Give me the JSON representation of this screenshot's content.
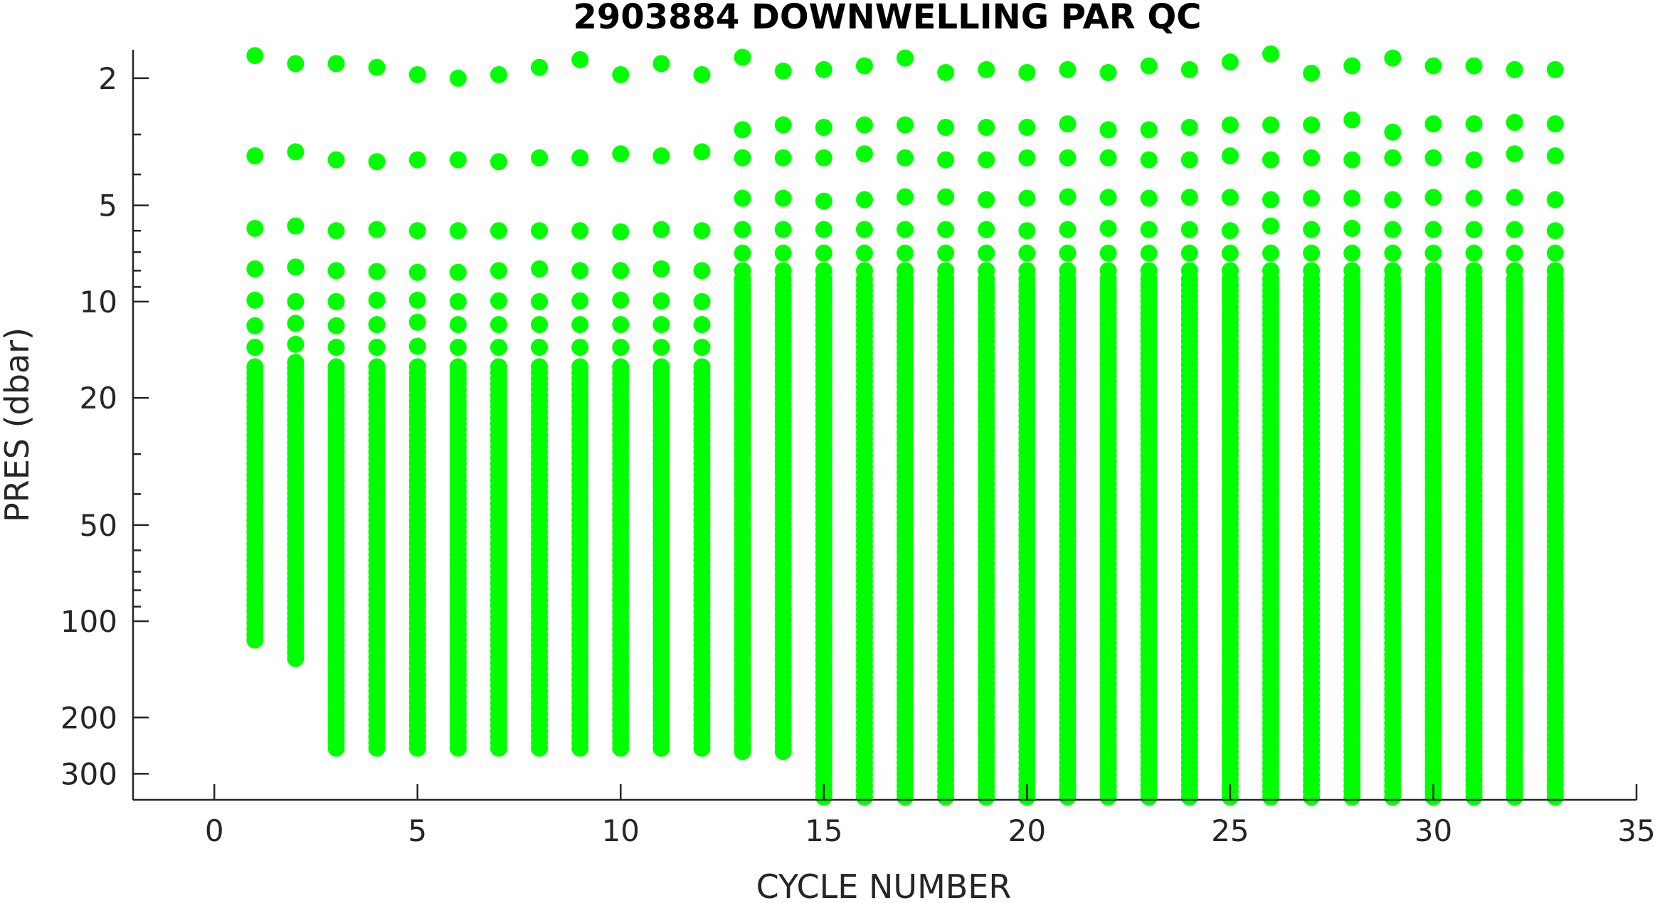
{
  "chart_data": {
    "type": "scatter",
    "title": "2903884  DOWNWELLING PAR QC",
    "xlabel": "CYCLE NUMBER",
    "ylabel": "PRES (dbar)",
    "xlim": [
      -2,
      35
    ],
    "ylim": [
      1.63,
      362
    ],
    "y_scale": "log",
    "y_reversed": true,
    "grid": false,
    "legend": "none",
    "x_ticks": [
      0,
      5,
      10,
      15,
      20,
      25,
      30,
      35
    ],
    "y_ticks": [
      2,
      5,
      10,
      20,
      50,
      100,
      200,
      300
    ],
    "marker_color": "#00ff00",
    "marker_size": "large filled circle",
    "profiles": [
      {
        "cycle": 1,
        "top_points": [
          1.7,
          3.5,
          5.9,
          7.9,
          9.9,
          11.9,
          13.9
        ],
        "dense_from": 16,
        "max_pres": 118
      },
      {
        "cycle": 2,
        "top_points": [
          1.8,
          3.4,
          5.8,
          7.8,
          10.0,
          11.7,
          13.6
        ],
        "dense_from": 15.5,
        "max_pres": 132
      },
      {
        "cycle": 3,
        "top_points": [
          1.8,
          3.6,
          6.0,
          8.0,
          10.0,
          11.9,
          13.9
        ],
        "dense_from": 16,
        "max_pres": 260
      },
      {
        "cycle": 4,
        "top_points": [
          1.85,
          3.65,
          5.95,
          8.05,
          9.9,
          11.8,
          13.9
        ],
        "dense_from": 16,
        "max_pres": 260
      },
      {
        "cycle": 5,
        "top_points": [
          1.95,
          3.6,
          6.0,
          8.1,
          9.9,
          11.6,
          13.8
        ],
        "dense_from": 16,
        "max_pres": 260
      },
      {
        "cycle": 6,
        "top_points": [
          2.0,
          3.6,
          6.0,
          8.1,
          10.0,
          11.8,
          13.9
        ],
        "dense_from": 16,
        "max_pres": 260
      },
      {
        "cycle": 7,
        "top_points": [
          1.95,
          3.65,
          6.0,
          8.0,
          9.95,
          11.8,
          13.9
        ],
        "dense_from": 16,
        "max_pres": 260
      },
      {
        "cycle": 8,
        "top_points": [
          1.85,
          3.55,
          6.0,
          7.9,
          10.0,
          11.8,
          13.9
        ],
        "dense_from": 16,
        "max_pres": 260
      },
      {
        "cycle": 9,
        "top_points": [
          1.75,
          3.55,
          6.0,
          8.0,
          9.95,
          11.8,
          13.9
        ],
        "dense_from": 16,
        "max_pres": 260
      },
      {
        "cycle": 10,
        "top_points": [
          1.95,
          3.45,
          6.05,
          8.0,
          9.9,
          11.8,
          13.9
        ],
        "dense_from": 16,
        "max_pres": 260
      },
      {
        "cycle": 11,
        "top_points": [
          1.8,
          3.5,
          5.95,
          7.9,
          9.95,
          11.8,
          13.9
        ],
        "dense_from": 16,
        "max_pres": 260
      },
      {
        "cycle": 12,
        "top_points": [
          1.95,
          3.4,
          6.0,
          8.0,
          10.0,
          11.8,
          13.9
        ],
        "dense_from": 16,
        "max_pres": 260
      },
      {
        "cycle": 13,
        "top_points": [
          1.72,
          2.9,
          3.55,
          4.75,
          5.95,
          7.05,
          8.0
        ],
        "dense_from": 8.5,
        "max_pres": 260
      },
      {
        "cycle": 14,
        "top_points": [
          1.9,
          2.8,
          3.55,
          4.75,
          5.95,
          7.05,
          8.0
        ],
        "dense_from": 8.5,
        "max_pres": 260
      },
      {
        "cycle": 15,
        "top_points": [
          1.88,
          2.85,
          3.55,
          4.85,
          5.95,
          7.05,
          8.0
        ],
        "dense_from": 8.5,
        "max_pres": 362
      },
      {
        "cycle": 16,
        "top_points": [
          1.83,
          2.8,
          3.45,
          4.8,
          5.95,
          7.05,
          8.0
        ],
        "dense_from": 8.5,
        "max_pres": 362
      },
      {
        "cycle": 17,
        "top_points": [
          1.73,
          2.8,
          3.55,
          4.7,
          5.95,
          7.05,
          8.0
        ],
        "dense_from": 8.5,
        "max_pres": 362
      },
      {
        "cycle": 18,
        "top_points": [
          1.92,
          2.85,
          3.6,
          4.7,
          5.95,
          7.05,
          8.0
        ],
        "dense_from": 8.5,
        "max_pres": 362
      },
      {
        "cycle": 19,
        "top_points": [
          1.88,
          2.85,
          3.6,
          4.8,
          5.95,
          7.05,
          8.0
        ],
        "dense_from": 8.5,
        "max_pres": 362
      },
      {
        "cycle": 20,
        "top_points": [
          1.92,
          2.85,
          3.55,
          4.75,
          6.0,
          7.05,
          8.0
        ],
        "dense_from": 8.5,
        "max_pres": 362
      },
      {
        "cycle": 21,
        "top_points": [
          1.88,
          2.78,
          3.55,
          4.7,
          5.95,
          7.05,
          8.0
        ],
        "dense_from": 8.5,
        "max_pres": 362
      },
      {
        "cycle": 22,
        "top_points": [
          1.92,
          2.9,
          3.55,
          4.72,
          5.9,
          7.05,
          8.0
        ],
        "dense_from": 8.5,
        "max_pres": 362
      },
      {
        "cycle": 23,
        "top_points": [
          1.83,
          2.9,
          3.6,
          4.75,
          5.95,
          7.05,
          8.0
        ],
        "dense_from": 8.5,
        "max_pres": 362
      },
      {
        "cycle": 24,
        "top_points": [
          1.88,
          2.85,
          3.6,
          4.72,
          5.95,
          7.05,
          8.0
        ],
        "dense_from": 8.5,
        "max_pres": 362
      },
      {
        "cycle": 25,
        "top_points": [
          1.78,
          2.8,
          3.5,
          4.72,
          6.0,
          7.05,
          8.0
        ],
        "dense_from": 8.5,
        "max_pres": 362
      },
      {
        "cycle": 26,
        "top_points": [
          1.68,
          2.8,
          3.6,
          4.8,
          5.8,
          7.05,
          8.0
        ],
        "dense_from": 8.5,
        "max_pres": 362
      },
      {
        "cycle": 27,
        "top_points": [
          1.93,
          2.8,
          3.55,
          4.75,
          5.95,
          7.05,
          8.0
        ],
        "dense_from": 8.5,
        "max_pres": 362
      },
      {
        "cycle": 28,
        "top_points": [
          1.83,
          2.7,
          3.6,
          4.75,
          5.9,
          7.05,
          8.0
        ],
        "dense_from": 8.5,
        "max_pres": 362
      },
      {
        "cycle": 29,
        "top_points": [
          1.73,
          2.95,
          3.55,
          4.8,
          5.95,
          7.05,
          8.0
        ],
        "dense_from": 8.5,
        "max_pres": 362
      },
      {
        "cycle": 30,
        "top_points": [
          1.83,
          2.78,
          3.55,
          4.72,
          5.95,
          7.05,
          8.0
        ],
        "dense_from": 8.5,
        "max_pres": 362
      },
      {
        "cycle": 31,
        "top_points": [
          1.83,
          2.78,
          3.6,
          4.75,
          5.95,
          7.05,
          8.0
        ],
        "dense_from": 8.5,
        "max_pres": 362
      },
      {
        "cycle": 32,
        "top_points": [
          1.88,
          2.75,
          3.45,
          4.72,
          5.95,
          7.05,
          8.0
        ],
        "dense_from": 8.5,
        "max_pres": 362
      },
      {
        "cycle": 33,
        "top_points": [
          1.88,
          2.78,
          3.5,
          4.8,
          6.0,
          7.05,
          8.0
        ],
        "dense_from": 8.5,
        "max_pres": 362
      }
    ]
  }
}
